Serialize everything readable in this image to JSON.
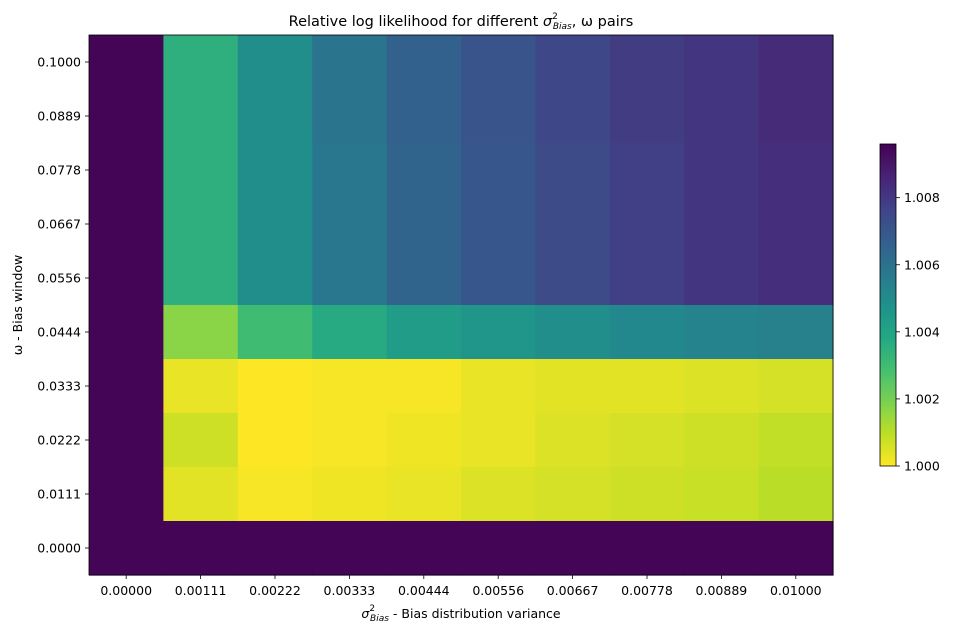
{
  "chart_data": {
    "type": "heatmap",
    "title": {
      "prefix": "Relative log likelihood for different ",
      "sym": "σ",
      "sup": "2",
      "sub": "Bias",
      "suffix": ", ω pairs"
    },
    "xlabel": {
      "sym": "σ",
      "sup": "2",
      "sub": "Bias",
      "suffix": " - Bias distribution variance"
    },
    "ylabel": "ω - Bias window",
    "x_categories": [
      "0.00000",
      "0.00111",
      "0.00222",
      "0.00333",
      "0.00444",
      "0.00556",
      "0.00667",
      "0.00778",
      "0.00889",
      "0.01000"
    ],
    "y_categories": [
      "0.1000",
      "0.0889",
      "0.0778",
      "0.0667",
      "0.0556",
      "0.0444",
      "0.0333",
      "0.0222",
      "0.0111",
      "0.0000"
    ],
    "values": [
      [
        1.0095,
        1.0035,
        1.0049,
        1.0059,
        1.0066,
        1.0071,
        1.0075,
        1.0079,
        1.0081,
        1.0084
      ],
      [
        1.0095,
        1.0035,
        1.0049,
        1.0059,
        1.0066,
        1.0071,
        1.0075,
        1.0079,
        1.0081,
        1.0084
      ],
      [
        1.0095,
        1.0035,
        1.0049,
        1.0058,
        1.0065,
        1.007,
        1.0074,
        1.0078,
        1.0081,
        1.0083
      ],
      [
        1.0095,
        1.0035,
        1.0049,
        1.0058,
        1.0065,
        1.007,
        1.0074,
        1.0078,
        1.0081,
        1.0083
      ],
      [
        1.0095,
        1.0035,
        1.0049,
        1.0058,
        1.0065,
        1.007,
        1.0074,
        1.0078,
        1.0081,
        1.0083
      ],
      [
        1.0095,
        1.0017,
        1.003,
        1.0037,
        1.0043,
        1.0046,
        1.0049,
        1.0051,
        1.0053,
        1.0054
      ],
      [
        1.0095,
        1.0003,
        1.0,
        1.0001,
        1.0001,
        1.0003,
        1.0004,
        1.0004,
        1.0005,
        1.0006
      ],
      [
        1.0095,
        1.0007,
        1.0,
        1.0001,
        1.0002,
        1.0003,
        1.0005,
        1.0006,
        1.0007,
        1.0009
      ],
      [
        1.0095,
        1.0004,
        1.0001,
        1.0002,
        1.0003,
        1.0005,
        1.0006,
        1.0007,
        1.0008,
        1.001
      ],
      [
        1.0095,
        1.0095,
        1.0095,
        1.0095,
        1.0095,
        1.0095,
        1.0095,
        1.0095,
        1.0095,
        1.0095
      ]
    ],
    "colormap": "viridis_r",
    "colorbar": {
      "range": [
        1.0,
        1.0096
      ],
      "ticks": [
        "1.000",
        "1.002",
        "1.004",
        "1.006",
        "1.008"
      ],
      "tick_values": [
        1.0,
        1.002,
        1.004,
        1.006,
        1.008
      ]
    }
  }
}
